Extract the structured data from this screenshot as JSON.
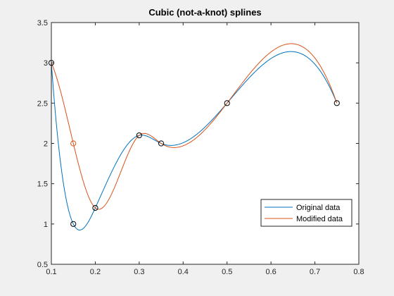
{
  "chart_data": {
    "type": "line",
    "title": "Cubic (not-a-knot) splines",
    "xlabel": "",
    "ylabel": "",
    "xlim": [
      0.1,
      0.8
    ],
    "ylim": [
      0.5,
      3.5
    ],
    "xticks": [
      "0.1",
      "0.2",
      "0.3",
      "0.4",
      "0.5",
      "0.6",
      "0.7",
      "0.8"
    ],
    "yticks": [
      "0.5",
      "1",
      "1.5",
      "2",
      "2.5",
      "3",
      "3.5"
    ],
    "grid": false,
    "legend_position": "lower-right",
    "series": [
      {
        "name": "Original data",
        "color": "#0072BD",
        "x": [
          0.1,
          0.15,
          0.2,
          0.3,
          0.35,
          0.5,
          0.75
        ],
        "y": [
          3,
          1,
          1.2,
          2.1,
          2,
          2.5,
          2.5
        ]
      },
      {
        "name": "Modified data",
        "color": "#D95319",
        "x": [
          0.1,
          0.15,
          0.2,
          0.3,
          0.35,
          0.5,
          0.75
        ],
        "y": [
          3,
          2,
          1.2,
          2.1,
          2,
          2.5,
          2.5
        ]
      }
    ],
    "markers": {
      "x": [
        0.1,
        0.15,
        0.2,
        0.3,
        0.35,
        0.5,
        0.75
      ],
      "y": [
        3,
        1,
        1.2,
        2.1,
        2,
        2.5,
        2.5
      ],
      "color": "#000000",
      "modified_point": {
        "x": 0.15,
        "y": 2,
        "color": "#D95319"
      }
    }
  }
}
